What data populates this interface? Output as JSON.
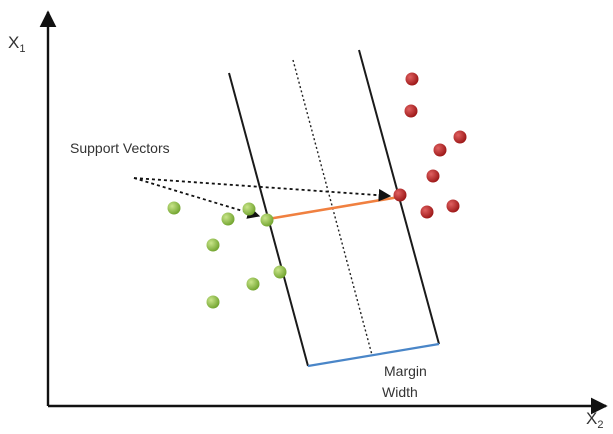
{
  "axes": {
    "y_label": "X",
    "y_subscript": "1",
    "x_label": "X",
    "x_subscript": "2"
  },
  "annotations": {
    "support_vectors": "Support Vectors",
    "margin_line1": "Margin",
    "margin_line2": "Width"
  },
  "colors": {
    "axis": "#111111",
    "boundary": "#1a1a1a",
    "hyperplane": "#222222",
    "green_point": "#8cc13e",
    "green_point_light": "#c9e58a",
    "red_point": "#b22222",
    "red_point_light": "#e06060",
    "margin_connector": "#f08040",
    "margin_width_bar": "#4a86c8",
    "pointer": "#111111"
  },
  "icons": {
    "pointer_head": "arrowhead"
  }
}
